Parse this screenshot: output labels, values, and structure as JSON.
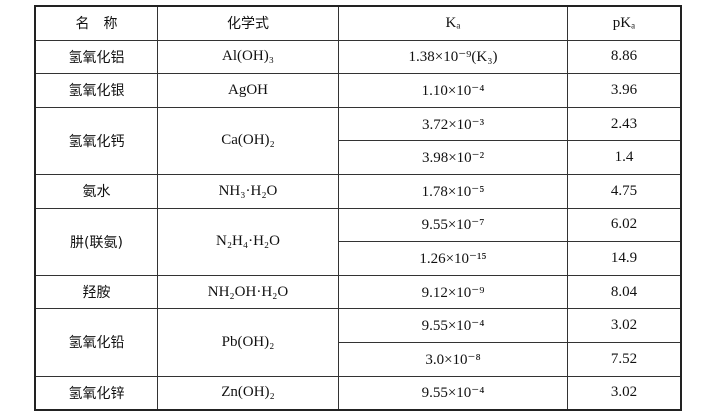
{
  "table": {
    "header": [
      "名　称",
      "化学式",
      "Kₐ",
      "pKₐ"
    ],
    "rows": [
      {
        "name": "氢氧化铝",
        "formula": "Al(OH)₃",
        "entries": [
          {
            "ka": "1.38×10⁻⁹(K₃)",
            "pka": "8.86"
          }
        ]
      },
      {
        "name": "氢氧化银",
        "formula": "AgOH",
        "entries": [
          {
            "ka": "1.10×10⁻⁴",
            "pka": "3.96"
          }
        ]
      },
      {
        "name": "氢氧化钙",
        "formula": "Ca(OH)₂",
        "entries": [
          {
            "ka": "3.72×10⁻³",
            "pka": "2.43"
          },
          {
            "ka": "3.98×10⁻²",
            "pka": "1.4"
          }
        ]
      },
      {
        "name": "氨水",
        "formula": "NH₃·H₂O",
        "entries": [
          {
            "ka": "1.78×10⁻⁵",
            "pka": "4.75"
          }
        ]
      },
      {
        "name": "肼(联氨)",
        "formula": "N₂H₄·H₂O",
        "entries": [
          {
            "ka": "9.55×10⁻⁷",
            "pka": "6.02"
          },
          {
            "ka": "1.26×10⁻¹⁵",
            "pka": "14.9"
          }
        ]
      },
      {
        "name": "羟胺",
        "formula": "NH₂OH·H₂O",
        "entries": [
          {
            "ka": "9.12×10⁻⁹",
            "pka": "8.04"
          }
        ]
      },
      {
        "name": "氢氧化铅",
        "formula": "Pb(OH)₂",
        "entries": [
          {
            "ka": "9.55×10⁻⁴",
            "pka": "3.02"
          },
          {
            "ka": "3.0×10⁻⁸",
            "pka": "7.52"
          }
        ]
      },
      {
        "name": "氢氧化锌",
        "formula": "Zn(OH)₂",
        "entries": [
          {
            "ka": "9.55×10⁻⁴",
            "pka": "3.02"
          }
        ]
      }
    ]
  }
}
